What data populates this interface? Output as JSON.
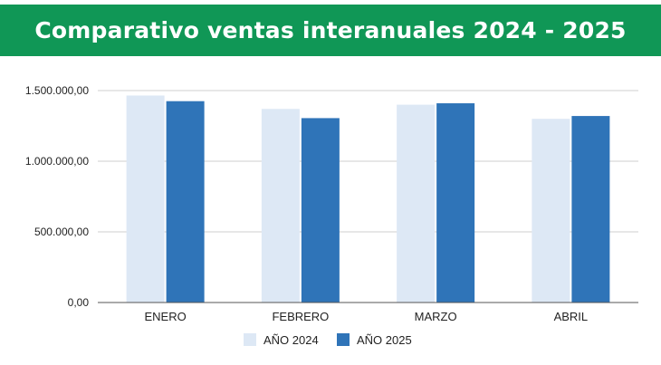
{
  "chart_data": {
    "type": "bar",
    "title": "Comparativo ventas interanuales 2024 - 2025",
    "categories": [
      "ENERO",
      "FEBRERO",
      "MARZO",
      "ABRIL"
    ],
    "series": [
      {
        "name": "AÑO 2024",
        "color": "#dde8f5",
        "values": [
          1465000,
          1370000,
          1400000,
          1300000
        ]
      },
      {
        "name": "AÑO 2025",
        "color": "#2f74b8",
        "values": [
          1425000,
          1305000,
          1410000,
          1320000
        ]
      }
    ],
    "yticks": [
      {
        "value": 0,
        "label": "0,00"
      },
      {
        "value": 500000,
        "label": "500.000,00"
      },
      {
        "value": 1000000,
        "label": "1.000.000,00"
      },
      {
        "value": 1500000,
        "label": "1.500.000,00"
      }
    ],
    "ylim": [
      0,
      1500000
    ],
    "grid": true,
    "legend_position": "bottom",
    "title_bar_color": "#109756"
  }
}
